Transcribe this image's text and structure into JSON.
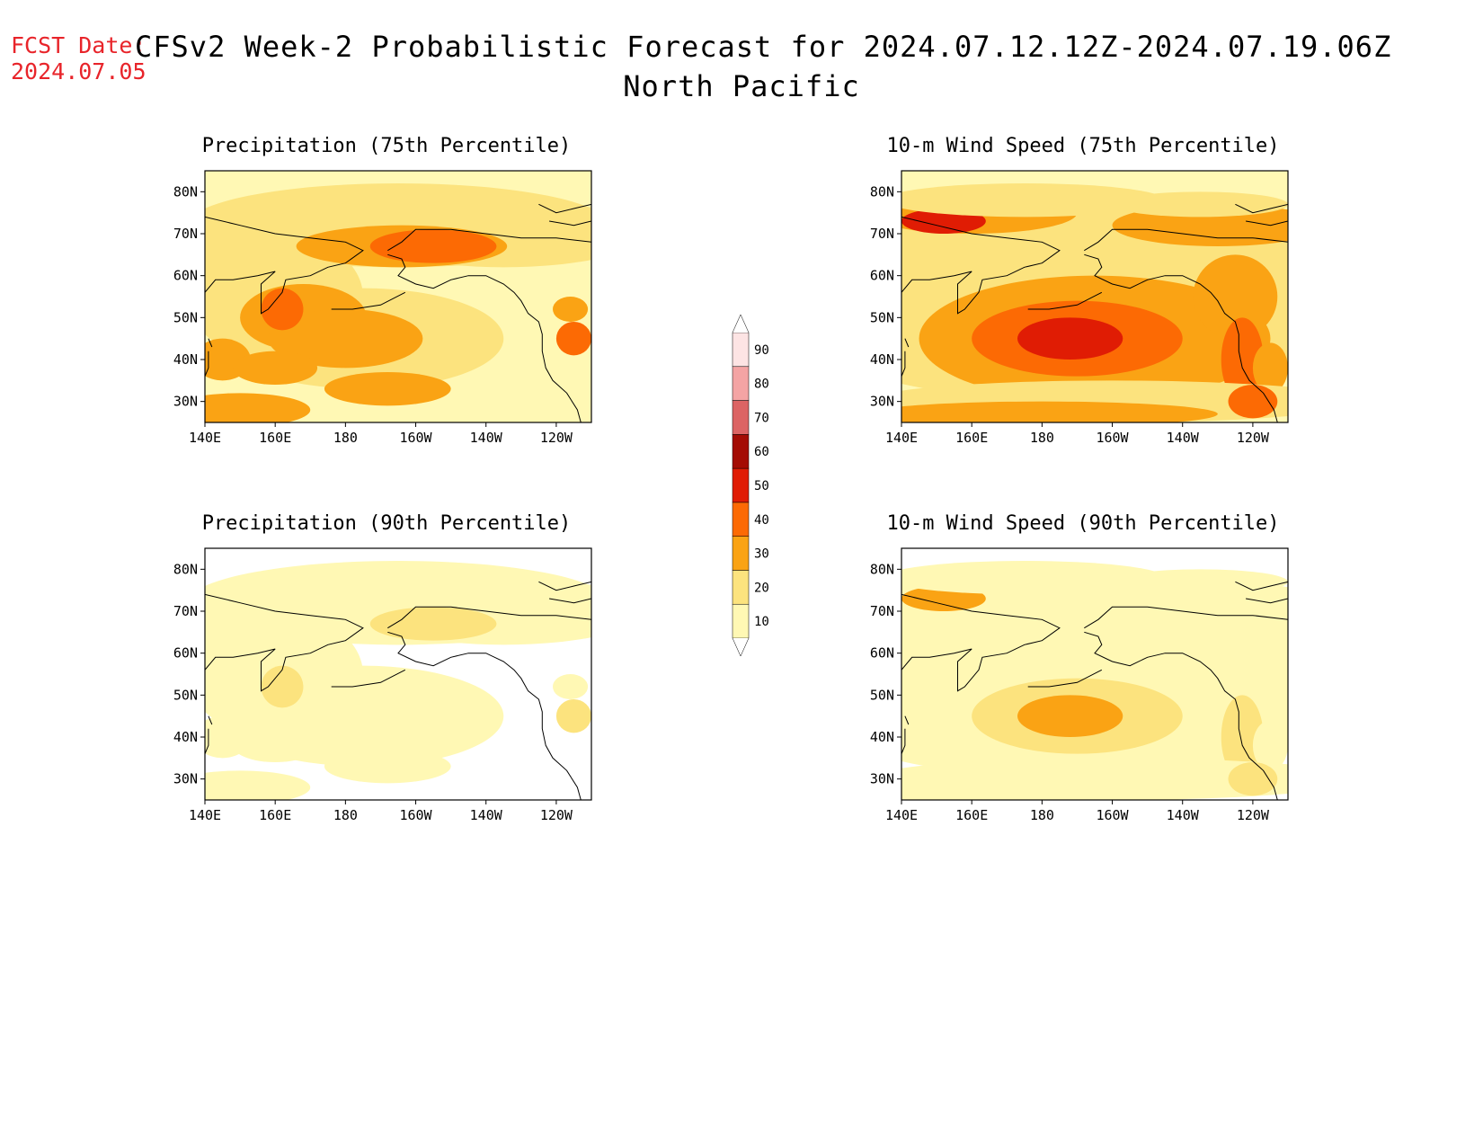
{
  "header": {
    "fcst_label": "FCST Date:",
    "fcst_date": "2024.07.05",
    "title_line1": "CFSv2 Week-2 Probabilistic Forecast for 2024.07.12.12Z-2024.07.19.06Z",
    "title_line2": "North Pacific"
  },
  "axes": {
    "lon_ticks": [
      "140E",
      "160E",
      "180",
      "160W",
      "140W",
      "120W"
    ],
    "lat_ticks": [
      "80N",
      "70N",
      "60N",
      "50N",
      "40N",
      "30N"
    ]
  },
  "panels": [
    {
      "id": "precip-75",
      "title": "Precipitation (75th Percentile)",
      "intensity": 1.0,
      "pattern": "precip"
    },
    {
      "id": "wind-75",
      "title": "10-m Wind Speed (75th Percentile)",
      "intensity": 1.0,
      "pattern": "wind"
    },
    {
      "id": "precip-90",
      "title": "Precipitation (90th Percentile)",
      "intensity": 0.0,
      "pattern": "precip"
    },
    {
      "id": "wind-90",
      "title": "10-m Wind Speed (90th Percentile)",
      "intensity": 0.0,
      "pattern": "wind"
    }
  ],
  "colorbar": {
    "labels": [
      "10",
      "20",
      "30",
      "40",
      "50",
      "60",
      "70",
      "80",
      "90"
    ],
    "colors": [
      "#fff8b4",
      "#fce37e",
      "#faa314",
      "#fc6a04",
      "#e01c04",
      "#a40c04",
      "#dc6464",
      "#f4a4a4",
      "#fde4e4"
    ]
  }
}
